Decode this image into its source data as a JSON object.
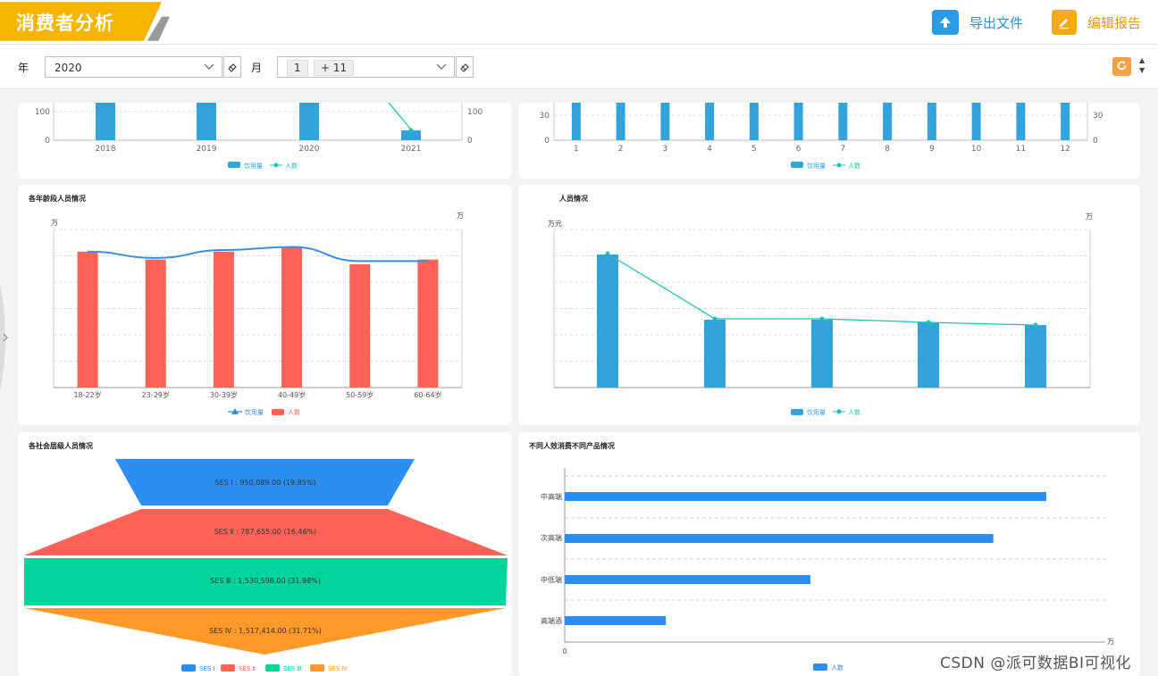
{
  "header": {
    "title": "消费者分析",
    "export_label": "导出文件",
    "edit_label": "编辑报告"
  },
  "filters": {
    "year_label": "年",
    "year_value": "2020",
    "month_label": "月",
    "month_tag1": "1",
    "month_tag2": "+ 11"
  },
  "colors": {
    "brand_yellow": "#f7b500",
    "blue": "#33a3dc",
    "teal": "#1fc2b0",
    "red": "#ff6256",
    "line_blue": "#3a8ee6",
    "ses1": "#2c8ef0",
    "ses2": "#ff6256",
    "ses3": "#00d49c",
    "ses4": "#ff9a2a"
  },
  "panels": {
    "top_left": {
      "categories": [
        "2018",
        "2019",
        "2020",
        "2021"
      ],
      "left_ticks": [
        "100",
        "0"
      ],
      "right_ticks": [
        "100",
        "0"
      ],
      "legend": [
        "饮用量",
        "人数"
      ]
    },
    "top_right": {
      "categories": [
        "1",
        "2",
        "3",
        "4",
        "5",
        "6",
        "7",
        "8",
        "9",
        "10",
        "11",
        "12"
      ],
      "left_ticks": [
        "30",
        "0"
      ],
      "right_ticks": [
        "30",
        "0"
      ],
      "legend": [
        "饮用量",
        "人数"
      ]
    },
    "age": {
      "title": "各年龄段人员情况",
      "unit_left": "万",
      "unit_right": "万",
      "categories": [
        "18-22岁",
        "23-29岁",
        "30-39岁",
        "40-49岁",
        "50-59岁",
        "60-64岁"
      ],
      "legend": [
        "饮用量",
        "人数"
      ]
    },
    "income": {
      "title": "人员情况",
      "unit_left": "万元",
      "unit_right": "万",
      "legend": [
        "饮用量",
        "人数"
      ]
    },
    "ses": {
      "title": "各社会层级人员情况",
      "levels": [
        {
          "label": "SES I : 950,089.00 (19.85%)",
          "value": 950089,
          "pct": 19.85,
          "legend": "SES I"
        },
        {
          "label": "SES Ⅱ : 787,655.00 (16.46%)",
          "value": 787655,
          "pct": 16.46,
          "legend": "SES Ⅱ"
        },
        {
          "label": "SES Ⅲ : 1,530,598.00 (31.98%)",
          "value": 1530598,
          "pct": 31.98,
          "legend": "SES Ⅲ"
        },
        {
          "label": "SES Ⅳ : 1,517,414.00 (31.71%)",
          "value": 1517414,
          "pct": 31.71,
          "legend": "SES Ⅳ"
        }
      ]
    },
    "products": {
      "title": "不同人效消费不同产品情况",
      "categories": [
        "中高端",
        "次高端",
        "中低端",
        "高端酒"
      ],
      "x_unit": "万",
      "x_zero": "0",
      "legend": "人数"
    }
  },
  "chart_data": [
    {
      "type": "bar",
      "categories": [
        "18-22岁",
        "23-29岁",
        "30-39岁",
        "40-49岁",
        "50-59岁",
        "60-64岁"
      ],
      "series": [
        {
          "name": "人数",
          "values": [
            0.86,
            0.81,
            0.86,
            0.89,
            0.78,
            0.81
          ]
        },
        {
          "name": "饮用量",
          "values": [
            0.86,
            0.82,
            0.87,
            0.89,
            0.8,
            0.8
          ]
        }
      ],
      "title": "各年龄段人员情况"
    },
    {
      "type": "bar",
      "categories": [
        "中高端",
        "次高端",
        "中低端",
        "高端酒"
      ],
      "series": [
        {
          "name": "人数",
          "values": [
            1.0,
            0.89,
            0.51,
            0.21
          ]
        }
      ],
      "title": "不同人效消费不同产品情况"
    }
  ],
  "watermark": "CSDN @派可数据BI可视化"
}
